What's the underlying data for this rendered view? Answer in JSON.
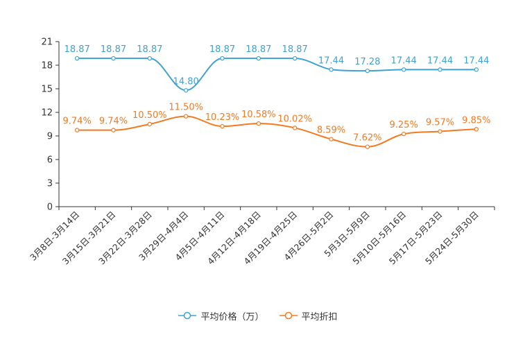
{
  "chart_data": {
    "type": "line",
    "categories": [
      "3月8日-3月14日",
      "3月15日-3月21日",
      "3月22日-3月28日",
      "3月29日-4月4日",
      "4月5日-4月11日",
      "4月12日-4月18日",
      "4月19日-4月25日",
      "4月26日-5月2日",
      "5月3日-5月9日",
      "5月10日-5月16日",
      "5月17日-5月23日",
      "5月24日-5月30日"
    ],
    "ylim": [
      0,
      21
    ],
    "yticks": [
      0,
      3,
      6,
      9,
      12,
      15,
      18,
      21
    ],
    "series": [
      {
        "name": "平均价格（万）",
        "color": "#3fa1d1",
        "values": [
          18.87,
          18.87,
          18.87,
          14.8,
          18.87,
          18.87,
          18.87,
          17.44,
          17.28,
          17.44,
          17.44,
          17.44
        ],
        "labels": [
          "18.87",
          "18.87",
          "18.87",
          "14.80",
          "18.87",
          "18.87",
          "18.87",
          "17.44",
          "17.28",
          "17.44",
          "17.44",
          "17.44"
        ]
      },
      {
        "name": "平均折扣",
        "color": "#f47920",
        "values": [
          9.74,
          9.74,
          10.5,
          11.5,
          10.23,
          10.58,
          10.02,
          8.59,
          7.62,
          9.25,
          9.57,
          9.85
        ],
        "labels": [
          "9.74%",
          "9.74%",
          "10.50%",
          "11.50%",
          "10.23%",
          "10.58%",
          "10.02%",
          "8.59%",
          "7.62%",
          "9.25%",
          "9.57%",
          "9.85%"
        ]
      }
    ],
    "legend_position": "bottom-center"
  }
}
